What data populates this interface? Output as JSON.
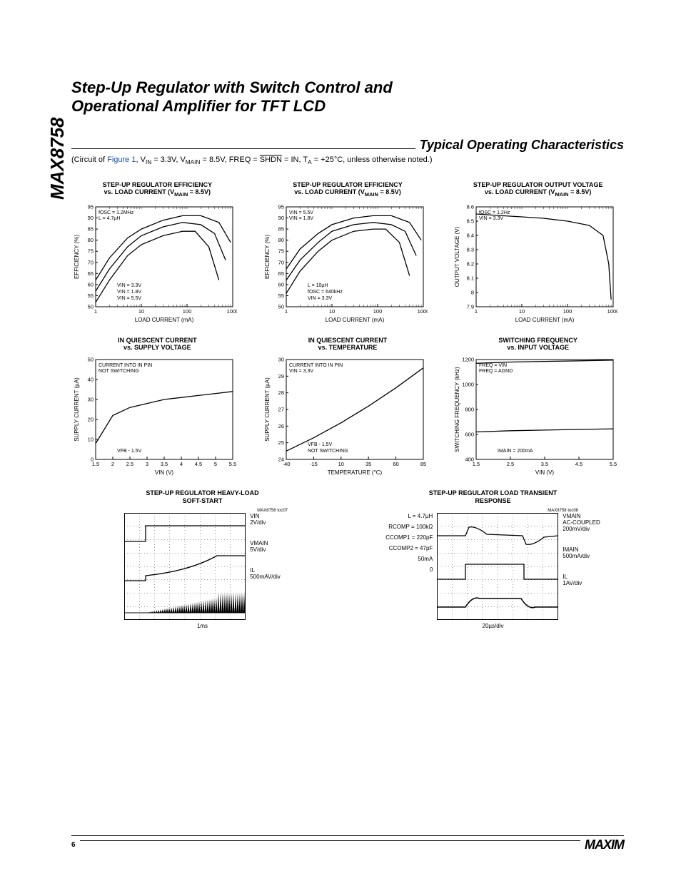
{
  "part_number": "MAX8758",
  "page_number": "6",
  "logo_text": "MAXIM",
  "title_line1": "Step-Up Regulator with Switch Control and",
  "title_line2": "Operational Amplifier for TFT LCD",
  "section_title": "Typical Operating Characteristics",
  "circuit_note_plain": "(Circuit of Figure 1, V_IN = 3.3V, V_MAIN = 8.5V, FREQ = SHDN = IN, T_A = +25°C, unless otherwise noted.)",
  "circuit_note_parts": {
    "prefix": "(Circuit of ",
    "figlink": "Figure 1",
    "rest": ", V",
    "in": "IN",
    "eq33": " = 3.3V, V",
    "main": "MAIN",
    "eq85": " = 8.5V, FREQ = ",
    "shdn": "SHDN",
    "eqin": " = IN, T",
    "a": "A",
    "end": " = +25°C, unless otherwise noted.)"
  },
  "charts": [
    {
      "id": "eff1",
      "title_l1": "STEP-UP REGULATOR EFFICIENCY",
      "title_l2": "vs. LOAD CURRENT (V_MAIN = 8.5V)",
      "xlabel": "LOAD CURRENT (mA)",
      "ylabel": "EFFICIENCY (%)",
      "xscale": "log",
      "xticks": [
        1,
        10,
        100,
        1000
      ],
      "yticks": [
        50,
        55,
        60,
        65,
        70,
        75,
        80,
        85,
        90,
        95
      ],
      "ylim": [
        50,
        95
      ],
      "xlim": [
        1,
        1000
      ],
      "annotations": [
        "fOSC = 1.2MHz",
        "L = 4.7µH",
        "VIN = 5.5V",
        "VIN = 1.8V",
        "VIN = 3.3V"
      ],
      "series": [
        {
          "name": "VIN=5.5V",
          "color": "#000",
          "data": [
            [
              1,
              62
            ],
            [
              2,
              72
            ],
            [
              5,
              81
            ],
            [
              10,
              85
            ],
            [
              30,
              89
            ],
            [
              80,
              91
            ],
            [
              200,
              91
            ],
            [
              500,
              88
            ],
            [
              900,
              79
            ]
          ]
        },
        {
          "name": "VIN=3.3V",
          "color": "#000",
          "data": [
            [
              1,
              57
            ],
            [
              2,
              67
            ],
            [
              5,
              77
            ],
            [
              10,
              82
            ],
            [
              30,
              86
            ],
            [
              80,
              88
            ],
            [
              200,
              87
            ],
            [
              400,
              83
            ],
            [
              700,
              71
            ]
          ]
        },
        {
          "name": "VIN=1.8V",
          "color": "#000",
          "data": [
            [
              1,
              52
            ],
            [
              2,
              62
            ],
            [
              5,
              73
            ],
            [
              10,
              78
            ],
            [
              30,
              82
            ],
            [
              80,
              84
            ],
            [
              150,
              84
            ],
            [
              300,
              77
            ],
            [
              500,
              62
            ]
          ]
        }
      ]
    },
    {
      "id": "eff2",
      "title_l1": "STEP-UP REGULATOR EFFICIENCY",
      "title_l2": "vs. LOAD CURRENT (V_MAIN = 8.5V)",
      "xlabel": "LOAD CURRENT (mA)",
      "ylabel": "EFFICIENCY (%)",
      "xscale": "log",
      "xticks": [
        1,
        10,
        100,
        1000
      ],
      "yticks": [
        50,
        55,
        60,
        65,
        70,
        75,
        80,
        85,
        90,
        95
      ],
      "ylim": [
        50,
        95
      ],
      "xlim": [
        1,
        1000
      ],
      "annotations": [
        "VIN = 5.5V",
        "VIN = 1.8V",
        "VIN = 3.3V",
        "fOSC = 640kHz",
        "L = 10µH"
      ],
      "series": [
        {
          "name": "VIN=5.5V",
          "color": "#000",
          "data": [
            [
              1,
              67
            ],
            [
              2,
              76
            ],
            [
              5,
              83
            ],
            [
              10,
              87
            ],
            [
              30,
              90
            ],
            [
              80,
              91
            ],
            [
              200,
              91
            ],
            [
              500,
              88
            ],
            [
              900,
              80
            ]
          ]
        },
        {
          "name": "VIN=3.3V",
          "color": "#000",
          "data": [
            [
              1,
              62
            ],
            [
              2,
              71
            ],
            [
              5,
              79
            ],
            [
              10,
              84
            ],
            [
              30,
              87
            ],
            [
              80,
              88
            ],
            [
              200,
              87
            ],
            [
              400,
              84
            ],
            [
              700,
              73
            ]
          ]
        },
        {
          "name": "VIN=1.8V",
          "color": "#000",
          "data": [
            [
              1,
              56
            ],
            [
              2,
              66
            ],
            [
              5,
              75
            ],
            [
              10,
              80
            ],
            [
              30,
              84
            ],
            [
              80,
              85
            ],
            [
              150,
              85
            ],
            [
              300,
              79
            ],
            [
              500,
              64
            ]
          ]
        }
      ]
    },
    {
      "id": "vout",
      "title_l1": "STEP-UP REGULATOR OUTPUT VOLTAGE",
      "title_l2": "vs. LOAD CURRENT (V_MAIN = 8.5V)",
      "xlabel": "LOAD CURRENT (mA)",
      "ylabel": "OUTPUT VOLTAGE (V)",
      "xscale": "log",
      "xticks": [
        1,
        10,
        100,
        1000
      ],
      "yticks": [
        7.9,
        8.0,
        8.1,
        8.2,
        8.3,
        8.4,
        8.5,
        8.6
      ],
      "ylim": [
        7.9,
        8.6
      ],
      "xlim": [
        1,
        1000
      ],
      "annotations": [
        "fOSC = 1.2Hz",
        "VIN = 3.3V"
      ],
      "series": [
        {
          "name": "Vout",
          "color": "#000",
          "data": [
            [
              1,
              8.55
            ],
            [
              3,
              8.54
            ],
            [
              10,
              8.53
            ],
            [
              30,
              8.52
            ],
            [
              100,
              8.5
            ],
            [
              300,
              8.47
            ],
            [
              600,
              8.4
            ],
            [
              800,
              8.2
            ],
            [
              900,
              7.95
            ]
          ]
        }
      ]
    },
    {
      "id": "iq_vs_vin",
      "title_l1": "IN QUIESCENT CURRENT",
      "title_l2": "vs. SUPPLY VOLTAGE",
      "xlabel": "VIN (V)",
      "ylabel": "SUPPLY CURRENT (µA)",
      "xscale": "linear",
      "xticks": [
        1.5,
        2.0,
        2.5,
        3.0,
        3.5,
        4.0,
        4.5,
        5.0,
        5.5
      ],
      "yticks": [
        0,
        10,
        20,
        30,
        40,
        50
      ],
      "ylim": [
        0,
        50
      ],
      "xlim": [
        1.5,
        5.5
      ],
      "annotations": [
        "CURRENT INTO IN PIN",
        "NOT SWITCHING",
        "VFB - 1.5V"
      ],
      "series": [
        {
          "name": "Iq",
          "color": "#000",
          "data": [
            [
              1.5,
              8
            ],
            [
              2.0,
              22
            ],
            [
              2.5,
              26
            ],
            [
              3.0,
              28
            ],
            [
              3.5,
              30
            ],
            [
              4.0,
              31
            ],
            [
              4.5,
              32
            ],
            [
              5.0,
              33
            ],
            [
              5.5,
              34
            ]
          ]
        }
      ]
    },
    {
      "id": "iq_vs_temp",
      "title_l1": "IN QUIESCENT CURRENT",
      "title_l2": "vs. TEMPERATURE",
      "xlabel": "TEMPERATURE (°C)",
      "ylabel": "SUPPLY CURRENT (µA)",
      "xscale": "linear",
      "xticks": [
        -40,
        -15,
        10,
        35,
        60,
        85
      ],
      "yticks": [
        24,
        25,
        26,
        27,
        28,
        29,
        30
      ],
      "ylim": [
        24,
        30
      ],
      "xlim": [
        -40,
        85
      ],
      "annotations": [
        "CURRENT INTO IN PIN",
        "VIN = 3.3V",
        "NOT SWITCHING",
        "VFB - 1.5V"
      ],
      "series": [
        {
          "name": "Iq",
          "color": "#000",
          "data": [
            [
              -40,
              24.5
            ],
            [
              -15,
              25.3
            ],
            [
              10,
              26.2
            ],
            [
              35,
              27.2
            ],
            [
              60,
              28.3
            ],
            [
              85,
              29.5
            ]
          ]
        }
      ]
    },
    {
      "id": "fsw_vs_vin",
      "title_l1": "SWITCHING FREQUENCY",
      "title_l2": "vs. INPUT VOLTAGE",
      "xlabel": "VIN (V)",
      "ylabel": "SWITCHING FREQUENCY (kHz)",
      "xscale": "linear",
      "xticks": [
        1.5,
        2.5,
        3.5,
        4.5,
        5.5
      ],
      "yticks": [
        400,
        600,
        800,
        1000,
        1200
      ],
      "ylim": [
        400,
        1200
      ],
      "xlim": [
        1.5,
        5.5
      ],
      "annotations": [
        "FREQ = VIN",
        "FREQ = AGND",
        "IMAIN = 200mA"
      ],
      "series": [
        {
          "name": "freq=vin",
          "color": "#000",
          "data": [
            [
              1.5,
              1170
            ],
            [
              2.5,
              1180
            ],
            [
              3.5,
              1185
            ],
            [
              4.5,
              1190
            ],
            [
              5.5,
              1195
            ]
          ]
        },
        {
          "name": "freq=agnd",
          "color": "#000",
          "data": [
            [
              1.5,
              620
            ],
            [
              2.5,
              630
            ],
            [
              3.5,
              635
            ],
            [
              4.5,
              640
            ],
            [
              5.5,
              645
            ]
          ]
        }
      ]
    }
  ],
  "scopes": [
    {
      "id": "softstart",
      "title_l1": "STEP-UP REGULATOR HEAVY-LOAD",
      "title_l2": "SOFT-START",
      "chip_tag": "MAX8758 toc07",
      "left_labels": [],
      "right_labels": [
        {
          "l1": "VIN",
          "l2": "2V/div"
        },
        {
          "l1": "VMAIN",
          "l2": "5V/div"
        },
        {
          "l1": "IL",
          "l2": "500mAV/div"
        }
      ],
      "time_base": "1ms"
    },
    {
      "id": "transient",
      "title_l1": "STEP-UP REGULATOR LOAD TRANSIENT",
      "title_l2": "RESPONSE",
      "chip_tag": "MAX8758 toc08",
      "left_labels": [
        {
          "l1": "L = 4.7µH",
          "l2": ""
        },
        {
          "l1": "RCOMP = 100kΩ",
          "l2": ""
        },
        {
          "l1": "CCOMP1 = 220pF",
          "l2": ""
        },
        {
          "l1": "CCOMP2 = 47pF",
          "l2": ""
        },
        {
          "l1": "50mA",
          "l2": ""
        },
        {
          "l1": "0",
          "l2": ""
        }
      ],
      "right_labels": [
        {
          "l1": "VMAIN",
          "l2": "AC-COUPLED",
          "l3": "200mV/div"
        },
        {
          "l1": "IMAIN",
          "l2": "500mA/div"
        },
        {
          "l1": "IL",
          "l2": "1AV/div"
        }
      ],
      "time_base": "20µs/div"
    }
  ],
  "colors": {
    "fg": "#000000",
    "bg": "#ffffff",
    "link": "#1a4ea0"
  }
}
